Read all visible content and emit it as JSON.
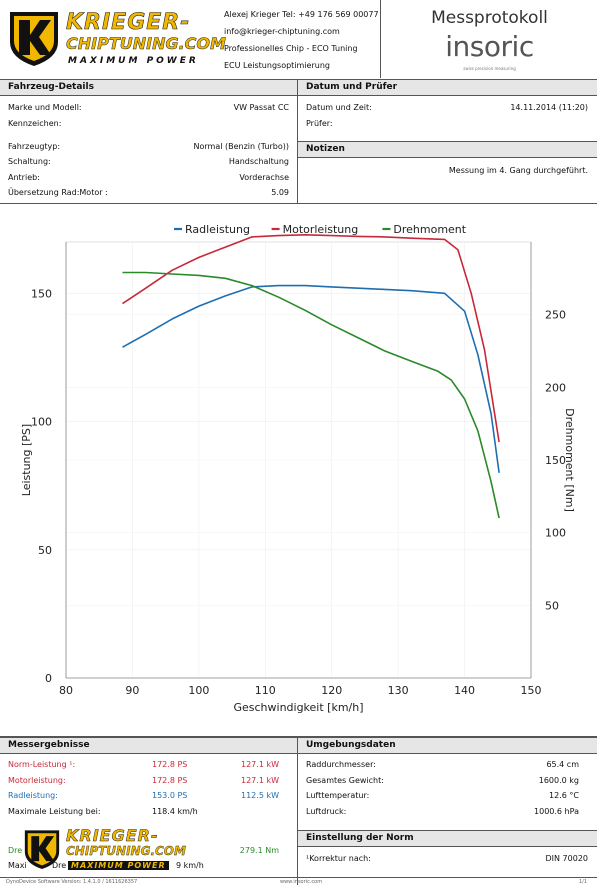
{
  "header": {
    "brand_line1": "KRIEGER-",
    "brand_line2": "CHIPTUNING.COM",
    "brand_tagline": "MAXIMUM POWER",
    "contact_lines": [
      "Alexej Krieger Tel: +49 176 569 00077",
      "info@krieger-chiptuning.com",
      "Professionelles Chip - ECO Tuning",
      "ECU Leistungsoptimierung"
    ],
    "protocol_title": "Messprotokoll",
    "insoric_logo": "insoric",
    "insoric_sub": "swiss precision measuring"
  },
  "vehicle": {
    "title": "Fahrzeug-Details",
    "rows": [
      {
        "label": "Marke und Modell:",
        "value": "VW Passat CC"
      },
      {
        "label": "Kennzeichen:",
        "value": ""
      },
      {
        "label": "Fahrzeugtyp:",
        "value": "Normal (Benzin (Turbo))"
      },
      {
        "label": "Schaltung:",
        "value": "Handschaltung"
      },
      {
        "label": "Antrieb:",
        "value": "Vorderachse"
      },
      {
        "label": "Übersetzung Rad:Motor :",
        "value": "5.09"
      }
    ]
  },
  "test": {
    "title": "Datum und Prüfer",
    "date_label": "Datum und Zeit:",
    "date_value": "14.11.2014 (11:20)",
    "inspector_label": "Prüfer:",
    "inspector_value": ""
  },
  "notes": {
    "title": "Notizen",
    "text": "Messung im 4. Gang durchgeführt."
  },
  "chart_data": {
    "type": "line",
    "xlabel": "Geschwindigkeit [km/h]",
    "ylabel": "Leistung [PS]",
    "y2label": "Drehmoment [Nm]",
    "xlim": [
      80,
      150
    ],
    "ylim": [
      0,
      170
    ],
    "y2lim": [
      0,
      300
    ],
    "xticks": [
      80,
      90,
      100,
      110,
      120,
      130,
      140,
      150
    ],
    "yticks": [
      0,
      50,
      100,
      150
    ],
    "y2ticks": [
      50,
      100,
      150,
      200,
      250
    ],
    "grid": true,
    "legend_position": "top",
    "series": [
      {
        "name": "Radleistung",
        "axis": "left",
        "color": "#1f6eb0",
        "x": [
          88.5,
          92,
          96,
          100,
          104,
          108,
          112,
          116,
          120,
          124,
          128,
          132,
          137,
          140,
          142,
          144,
          145.2
        ],
        "y": [
          129,
          134,
          140,
          145,
          149,
          152.5,
          153,
          153,
          152.5,
          152,
          151.5,
          151,
          150,
          143,
          126,
          103,
          80
        ]
      },
      {
        "name": "Motorleistung",
        "axis": "left",
        "color": "#c8283a",
        "x": [
          88.5,
          92,
          96,
          100,
          104,
          108,
          112,
          116,
          120,
          124,
          128,
          132,
          137,
          139,
          141,
          143,
          145.2
        ],
        "y": [
          146,
          152,
          159,
          164,
          168,
          172,
          172.5,
          172.8,
          172.5,
          172.2,
          172,
          171.5,
          171,
          167,
          150,
          128,
          92
        ]
      },
      {
        "name": "Drehmoment",
        "axis": "right",
        "color": "#2a8a2a",
        "x": [
          88.5,
          92,
          96,
          100,
          104,
          108,
          112,
          116,
          120,
          124,
          128,
          132,
          136,
          138,
          140,
          142,
          144,
          145.2
        ],
        "y": [
          279,
          279,
          278,
          277,
          275,
          270,
          262,
          253,
          243,
          234,
          225,
          218,
          211,
          205,
          192,
          170,
          135,
          110
        ]
      }
    ]
  },
  "results": {
    "title": "Messergebnisse",
    "rows": [
      {
        "label": "Norm-Leistung ¹:",
        "v1": "172.8 PS",
        "v2": "127.1 kW",
        "color": "red"
      },
      {
        "label": "Motorleistung:",
        "v1": "172.8 PS",
        "v2": "127.1 kW",
        "color": "red"
      },
      {
        "label": "Radleistung:",
        "v1": "153.0 PS",
        "v2": "112.5 kW",
        "color": "blue"
      },
      {
        "label": "Maximale Leistung bei:",
        "v1": "118.4 km/h",
        "v2": "",
        "color": "black"
      }
    ],
    "partial_row": {
      "label_a": "Dre",
      "label_b": "Maxi",
      "label_c": "Dre",
      "value": "279.1 Nm",
      "tail": "9 km/h"
    }
  },
  "environment": {
    "title": "Umgebungsdaten",
    "rows": [
      {
        "label": "Raddurchmesser:",
        "value": "65.4 cm"
      },
      {
        "label": "Gesamtes Gewicht:",
        "value": "1600.0 kg"
      },
      {
        "label": "Lufttemperatur:",
        "value": "12.6 °C"
      },
      {
        "label": "Luftdruck:",
        "value": "1000.6 hPa"
      }
    ]
  },
  "norm": {
    "title": "Einstellung der Norm",
    "label": "¹Korrektur nach:",
    "value": "DIN 70020"
  },
  "footer": {
    "left": "DynoDevice Software Version: 1.4.1.0 / 1611626357",
    "center": "www.insoric.com",
    "right": "1/1"
  },
  "colors": {
    "red": "#c8283a",
    "blue": "#1f6eb0",
    "green": "#2a8a2a",
    "header_bg": "#e6e6e6",
    "brand_yellow": "#f2b800"
  }
}
